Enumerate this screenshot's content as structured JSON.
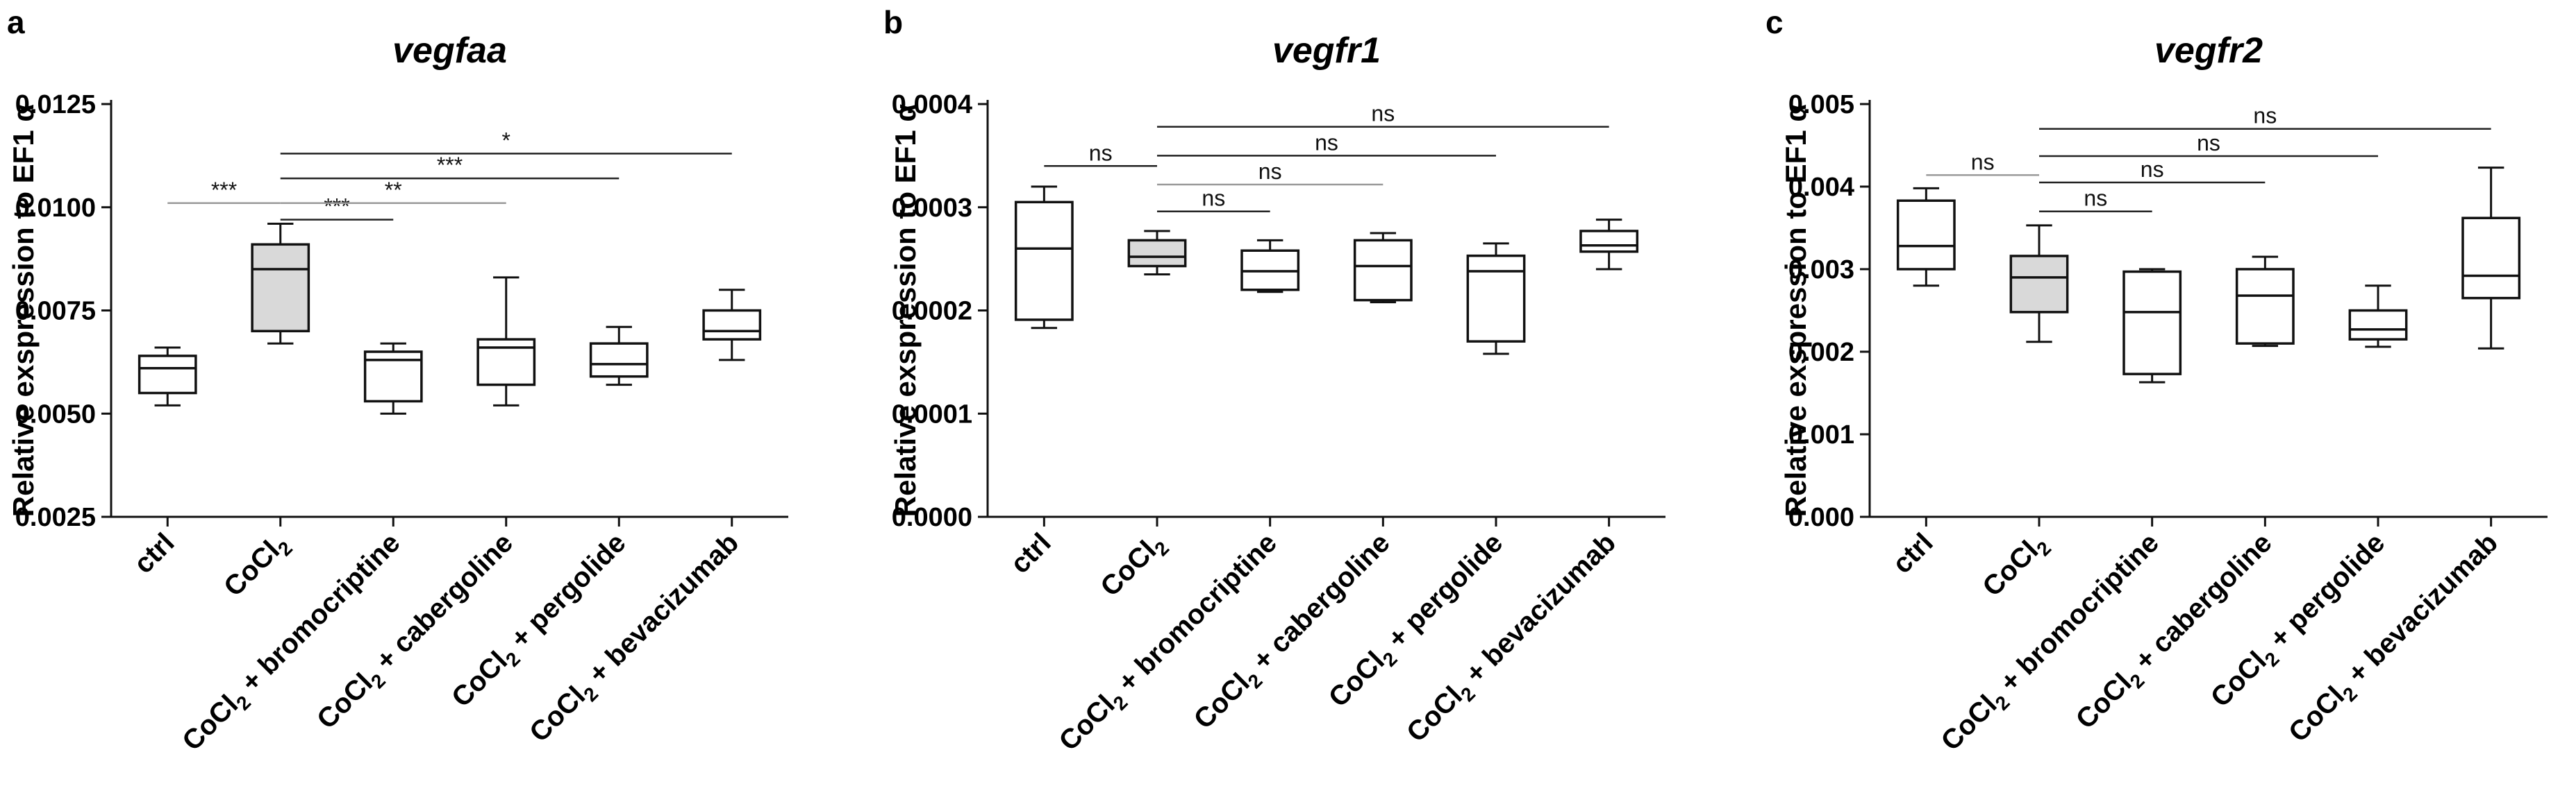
{
  "chart_data": [
    {
      "type": "box",
      "panel": "a",
      "title": "vegfaa",
      "ylabel": "Relative exspression to EF1",
      "ylabel_symbol": "α",
      "ylim": [
        0.0025,
        0.0125
      ],
      "yticks": [
        "0.0025",
        "0.0050",
        "0.0075",
        "0.0100",
        "0.0125"
      ],
      "categories": [
        {
          "base": "ctrl",
          "sub": "",
          "tail": ""
        },
        {
          "base": "CoCl",
          "sub": "2",
          "tail": ""
        },
        {
          "base": "CoCl",
          "sub": "2",
          "tail": " + bromocriptine"
        },
        {
          "base": "CoCl",
          "sub": "2",
          "tail": " + cabergoline"
        },
        {
          "base": "CoCl",
          "sub": "2",
          "tail": " + pergolide"
        },
        {
          "base": "CoCl",
          "sub": "2",
          "tail": " + bevacizumab"
        }
      ],
      "boxes": [
        {
          "min": 0.0052,
          "q1": 0.0055,
          "median": 0.0061,
          "q3": 0.0064,
          "max": 0.0066,
          "fill": "#ffffff"
        },
        {
          "min": 0.0067,
          "q1": 0.007,
          "median": 0.0085,
          "q3": 0.0091,
          "max": 0.0096,
          "fill": "#d9d9d9"
        },
        {
          "min": 0.005,
          "q1": 0.0053,
          "median": 0.0063,
          "q3": 0.0065,
          "max": 0.0067,
          "fill": "#ffffff"
        },
        {
          "min": 0.0052,
          "q1": 0.0057,
          "median": 0.0066,
          "q3": 0.0068,
          "max": 0.0083,
          "fill": "#ffffff"
        },
        {
          "min": 0.0057,
          "q1": 0.0059,
          "median": 0.0062,
          "q3": 0.0067,
          "max": 0.0071,
          "fill": "#ffffff"
        },
        {
          "min": 0.0063,
          "q1": 0.0068,
          "median": 0.007,
          "q3": 0.0075,
          "max": 0.008,
          "fill": "#ffffff"
        }
      ],
      "comparisons": [
        {
          "from": 0,
          "to": 1,
          "label": "***",
          "y": 0.0101,
          "color": "#9a9a9a"
        },
        {
          "from": 1,
          "to": 2,
          "label": "***",
          "y": 0.0097,
          "color": "#222222"
        },
        {
          "from": 1,
          "to": 3,
          "label": "**",
          "y": 0.0101,
          "color": "#9a9a9a"
        },
        {
          "from": 1,
          "to": 4,
          "label": "***",
          "y": 0.0107,
          "color": "#222222"
        },
        {
          "from": 1,
          "to": 5,
          "label": "*",
          "y": 0.0113,
          "color": "#222222"
        }
      ]
    },
    {
      "type": "box",
      "panel": "b",
      "title": "vegfr1",
      "ylabel": "Relative exspression to EF1",
      "ylabel_symbol": "α",
      "ylim": [
        0.0,
        0.0004
      ],
      "yticks": [
        "0.0000",
        "0.0001",
        "0.0002",
        "0.0003",
        "0.0004"
      ],
      "categories": [
        {
          "base": "ctrl",
          "sub": "",
          "tail": ""
        },
        {
          "base": "CoCl",
          "sub": "2",
          "tail": ""
        },
        {
          "base": "CoCl",
          "sub": "2",
          "tail": " + bromocriptine"
        },
        {
          "base": "CoCl",
          "sub": "2",
          "tail": " + cabergoline"
        },
        {
          "base": "CoCl",
          "sub": "2",
          "tail": " + pergolide"
        },
        {
          "base": "CoCl",
          "sub": "2",
          "tail": " + bevacizumab"
        }
      ],
      "boxes": [
        {
          "min": 0.000183,
          "q1": 0.000191,
          "median": 0.00026,
          "q3": 0.000305,
          "max": 0.00032,
          "fill": "#ffffff"
        },
        {
          "min": 0.000235,
          "q1": 0.000243,
          "median": 0.000252,
          "q3": 0.000268,
          "max": 0.000277,
          "fill": "#d9d9d9"
        },
        {
          "min": 0.000218,
          "q1": 0.00022,
          "median": 0.000238,
          "q3": 0.000258,
          "max": 0.000268,
          "fill": "#ffffff"
        },
        {
          "min": 0.000208,
          "q1": 0.00021,
          "median": 0.000243,
          "q3": 0.000268,
          "max": 0.000275,
          "fill": "#ffffff"
        },
        {
          "min": 0.000158,
          "q1": 0.00017,
          "median": 0.000238,
          "q3": 0.000253,
          "max": 0.000265,
          "fill": "#ffffff"
        },
        {
          "min": 0.00024,
          "q1": 0.000257,
          "median": 0.000263,
          "q3": 0.000277,
          "max": 0.000288,
          "fill": "#ffffff"
        }
      ],
      "comparisons": [
        {
          "from": 0,
          "to": 1,
          "label": "ns",
          "y": 0.00034,
          "color": "#222222"
        },
        {
          "from": 1,
          "to": 2,
          "label": "ns",
          "y": 0.000296,
          "color": "#222222"
        },
        {
          "from": 1,
          "to": 3,
          "label": "ns",
          "y": 0.000322,
          "color": "#9a9a9a"
        },
        {
          "from": 1,
          "to": 4,
          "label": "ns",
          "y": 0.00035,
          "color": "#222222"
        },
        {
          "from": 1,
          "to": 5,
          "label": "ns",
          "y": 0.000378,
          "color": "#222222"
        }
      ]
    },
    {
      "type": "box",
      "panel": "c",
      "title": "vegfr2",
      "ylabel": "Relative exspression to EF1",
      "ylabel_symbol": "α",
      "ylim": [
        0.0,
        0.005
      ],
      "yticks": [
        "0.000",
        "0.001",
        "0.002",
        "0.003",
        "0.004",
        "0.005"
      ],
      "categories": [
        {
          "base": "ctrl",
          "sub": "",
          "tail": ""
        },
        {
          "base": "CoCl",
          "sub": "2",
          "tail": ""
        },
        {
          "base": "CoCl",
          "sub": "2",
          "tail": " + bromocriptine"
        },
        {
          "base": "CoCl",
          "sub": "2",
          "tail": " + cabergoline"
        },
        {
          "base": "CoCl",
          "sub": "2",
          "tail": " + pergolide"
        },
        {
          "base": "CoCl",
          "sub": "2",
          "tail": " + bevacizumab"
        }
      ],
      "boxes": [
        {
          "min": 0.0028,
          "q1": 0.003,
          "median": 0.00328,
          "q3": 0.00383,
          "max": 0.00398,
          "fill": "#ffffff"
        },
        {
          "min": 0.00212,
          "q1": 0.00248,
          "median": 0.0029,
          "q3": 0.00316,
          "max": 0.00353,
          "fill": "#d9d9d9"
        },
        {
          "min": 0.00163,
          "q1": 0.00173,
          "median": 0.00248,
          "q3": 0.00297,
          "max": 0.003,
          "fill": "#ffffff"
        },
        {
          "min": 0.00207,
          "q1": 0.0021,
          "median": 0.00268,
          "q3": 0.003,
          "max": 0.00315,
          "fill": "#ffffff"
        },
        {
          "min": 0.00206,
          "q1": 0.00215,
          "median": 0.00227,
          "q3": 0.0025,
          "max": 0.0028,
          "fill": "#ffffff"
        },
        {
          "min": 0.00204,
          "q1": 0.00265,
          "median": 0.00292,
          "q3": 0.00362,
          "max": 0.00423,
          "fill": "#ffffff"
        }
      ],
      "comparisons": [
        {
          "from": 0,
          "to": 1,
          "label": "ns",
          "y": 0.00414,
          "color": "#9a9a9a"
        },
        {
          "from": 1,
          "to": 2,
          "label": "ns",
          "y": 0.0037,
          "color": "#222222"
        },
        {
          "from": 1,
          "to": 3,
          "label": "ns",
          "y": 0.00405,
          "color": "#222222"
        },
        {
          "from": 1,
          "to": 4,
          "label": "ns",
          "y": 0.00437,
          "color": "#222222"
        },
        {
          "from": 1,
          "to": 5,
          "label": "ns",
          "y": 0.0047,
          "color": "#222222"
        }
      ]
    }
  ]
}
